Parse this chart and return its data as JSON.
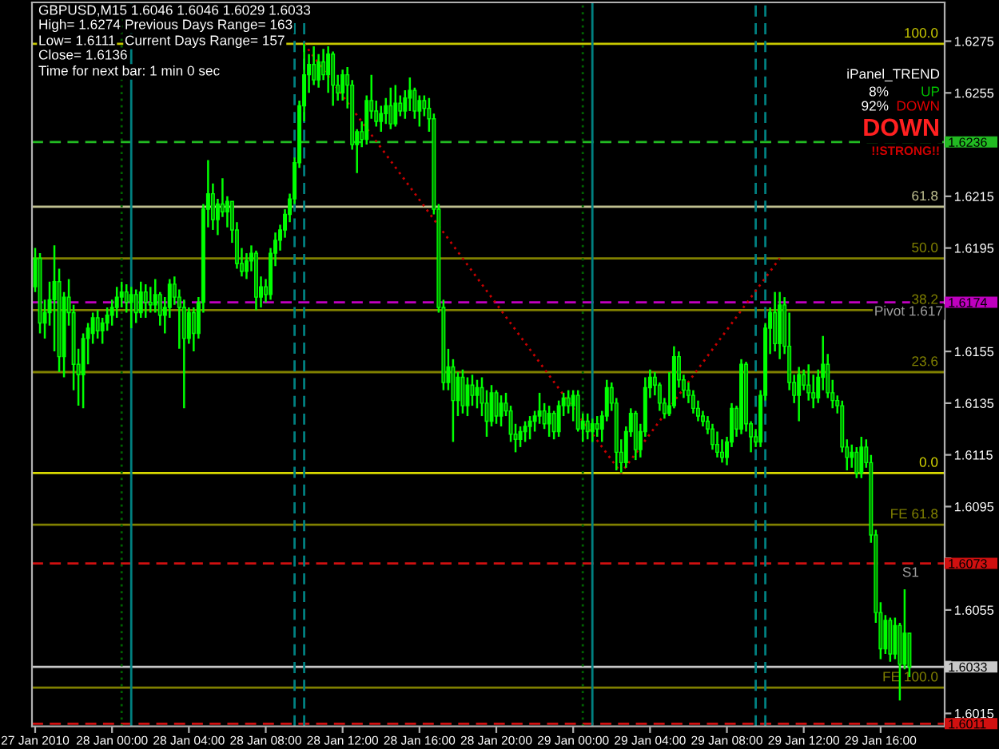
{
  "chart_data": {
    "type": "candlestick",
    "title": "GBPUSD,M15 1.6046 1.6046 1.6029 1.6033",
    "color": "#00ff00",
    "x": [
      "2010-01-27T20:00",
      "2010-01-27T20:15",
      "2010-01-27T20:30",
      "2010-01-27T20:45",
      "2010-01-27T21:00",
      "2010-01-27T21:15",
      "2010-01-27T21:30",
      "2010-01-27T21:45",
      "2010-01-27T22:00",
      "2010-01-27T22:15",
      "2010-01-27T22:30",
      "2010-01-27T22:45",
      "2010-01-27T23:00",
      "2010-01-27T23:15",
      "2010-01-27T23:30",
      "2010-01-27T23:45",
      "2010-01-28T00:00",
      "2010-01-28T00:15",
      "2010-01-28T00:30",
      "2010-01-28T00:45",
      "2010-01-28T01:00",
      "2010-01-28T01:15",
      "2010-01-28T01:30",
      "2010-01-28T01:45",
      "2010-01-28T02:00",
      "2010-01-28T02:15",
      "2010-01-28T02:30",
      "2010-01-28T02:45",
      "2010-01-28T03:00",
      "2010-01-28T03:15",
      "2010-01-28T03:30",
      "2010-01-28T03:45",
      "2010-01-28T04:00",
      "2010-01-28T04:15",
      "2010-01-28T04:30",
      "2010-01-28T04:45",
      "2010-01-28T05:00",
      "2010-01-28T05:15",
      "2010-01-28T05:30",
      "2010-01-28T05:45",
      "2010-01-28T06:00",
      "2010-01-28T06:15",
      "2010-01-28T06:30",
      "2010-01-28T06:45",
      "2010-01-28T07:00",
      "2010-01-28T07:15",
      "2010-01-28T07:30",
      "2010-01-28T07:45",
      "2010-01-28T08:00",
      "2010-01-28T08:15",
      "2010-01-28T08:30",
      "2010-01-28T08:45",
      "2010-01-28T09:00",
      "2010-01-28T09:15",
      "2010-01-28T09:30",
      "2010-01-28T09:45",
      "2010-01-28T10:00",
      "2010-01-28T10:15",
      "2010-01-28T10:30",
      "2010-01-28T10:45",
      "2010-01-28T11:00",
      "2010-01-28T11:15",
      "2010-01-28T11:30",
      "2010-01-28T11:45",
      "2010-01-28T12:00",
      "2010-01-28T12:15",
      "2010-01-28T12:30",
      "2010-01-28T12:45",
      "2010-01-28T13:00",
      "2010-01-28T13:15",
      "2010-01-28T13:30",
      "2010-01-28T13:45",
      "2010-01-28T14:00",
      "2010-01-28T14:15",
      "2010-01-28T14:30",
      "2010-01-28T14:45",
      "2010-01-28T15:00",
      "2010-01-28T15:15",
      "2010-01-28T15:30",
      "2010-01-28T15:45",
      "2010-01-28T16:00",
      "2010-01-28T16:15",
      "2010-01-28T16:30",
      "2010-01-28T16:45",
      "2010-01-28T17:00",
      "2010-01-28T17:15",
      "2010-01-28T17:30",
      "2010-01-28T17:45",
      "2010-01-28T18:00",
      "2010-01-28T18:15",
      "2010-01-28T18:30",
      "2010-01-28T18:45",
      "2010-01-28T19:00",
      "2010-01-28T19:15",
      "2010-01-28T19:30",
      "2010-01-28T19:45",
      "2010-01-28T20:00",
      "2010-01-28T20:15",
      "2010-01-28T20:30",
      "2010-01-28T20:45",
      "2010-01-28T21:00",
      "2010-01-28T21:15",
      "2010-01-28T21:30",
      "2010-01-28T21:45",
      "2010-01-28T22:00",
      "2010-01-28T22:15",
      "2010-01-28T22:30",
      "2010-01-28T22:45",
      "2010-01-28T23:00",
      "2010-01-28T23:15",
      "2010-01-28T23:30",
      "2010-01-28T23:45",
      "2010-01-29T00:00",
      "2010-01-29T00:15",
      "2010-01-29T00:30",
      "2010-01-29T00:45",
      "2010-01-29T01:00",
      "2010-01-29T01:15",
      "2010-01-29T01:30",
      "2010-01-29T01:45",
      "2010-01-29T02:00",
      "2010-01-29T02:15",
      "2010-01-29T02:30",
      "2010-01-29T02:45",
      "2010-01-29T03:00",
      "2010-01-29T03:15",
      "2010-01-29T03:30",
      "2010-01-29T03:45",
      "2010-01-29T04:00",
      "2010-01-29T04:15",
      "2010-01-29T04:30",
      "2010-01-29T04:45",
      "2010-01-29T05:00",
      "2010-01-29T05:15",
      "2010-01-29T05:30",
      "2010-01-29T05:45",
      "2010-01-29T06:00",
      "2010-01-29T06:15",
      "2010-01-29T06:30",
      "2010-01-29T06:45",
      "2010-01-29T07:00",
      "2010-01-29T07:15",
      "2010-01-29T07:30",
      "2010-01-29T07:45",
      "2010-01-29T08:00",
      "2010-01-29T08:15",
      "2010-01-29T08:30",
      "2010-01-29T08:45",
      "2010-01-29T09:00",
      "2010-01-29T09:15",
      "2010-01-29T09:30",
      "2010-01-29T09:45",
      "2010-01-29T10:00",
      "2010-01-29T10:15",
      "2010-01-29T10:30",
      "2010-01-29T10:45",
      "2010-01-29T11:00",
      "2010-01-29T11:15",
      "2010-01-29T11:30",
      "2010-01-29T11:45",
      "2010-01-29T12:00",
      "2010-01-29T12:15",
      "2010-01-29T12:30",
      "2010-01-29T12:45",
      "2010-01-29T13:00",
      "2010-01-29T13:15",
      "2010-01-29T13:30",
      "2010-01-29T13:45",
      "2010-01-29T14:00",
      "2010-01-29T14:15",
      "2010-01-29T14:30",
      "2010-01-29T14:45",
      "2010-01-29T15:00",
      "2010-01-29T15:15",
      "2010-01-29T15:30",
      "2010-01-29T15:45",
      "2010-01-29T16:00",
      "2010-01-29T16:15",
      "2010-01-29T16:30",
      "2010-01-29T16:45",
      "2010-01-29T17:00",
      "2010-01-29T17:15",
      "2010-01-29T17:30"
    ],
    "ohlc": [
      [
        1.618,
        1.6195,
        1.6178,
        1.6191
      ],
      [
        1.6191,
        1.6193,
        1.6162,
        1.6166
      ],
      [
        1.6166,
        1.6175,
        1.616,
        1.617
      ],
      [
        1.617,
        1.6182,
        1.6165,
        1.6175
      ],
      [
        1.6175,
        1.6196,
        1.6155,
        1.6182
      ],
      [
        1.6182,
        1.6187,
        1.6147,
        1.6153
      ],
      [
        1.6153,
        1.6178,
        1.6145,
        1.6176
      ],
      [
        1.6176,
        1.6183,
        1.6165,
        1.617
      ],
      [
        1.617,
        1.6173,
        1.614,
        1.615
      ],
      [
        1.615,
        1.6156,
        1.6134,
        1.6146
      ],
      [
        1.6146,
        1.6162,
        1.6133,
        1.616
      ],
      [
        1.616,
        1.6166,
        1.615,
        1.6164
      ],
      [
        1.6162,
        1.617,
        1.6158,
        1.6168
      ],
      [
        1.6168,
        1.6171,
        1.616,
        1.6163
      ],
      [
        1.6163,
        1.6168,
        1.6158,
        1.6166
      ],
      [
        1.6166,
        1.6172,
        1.6163,
        1.6169
      ],
      [
        1.6169,
        1.6175,
        1.6165,
        1.6172
      ],
      [
        1.6172,
        1.618,
        1.6168,
        1.6176
      ],
      [
        1.6176,
        1.6182,
        1.6172,
        1.6178
      ],
      [
        1.6178,
        1.6181,
        1.617,
        1.6174
      ],
      [
        1.6174,
        1.618,
        1.6164,
        1.6177
      ],
      [
        1.6177,
        1.6179,
        1.6166,
        1.617
      ],
      [
        1.617,
        1.6182,
        1.6168,
        1.6178
      ],
      [
        1.6178,
        1.6181,
        1.6168,
        1.6174
      ],
      [
        1.6174,
        1.618,
        1.617,
        1.6173
      ],
      [
        1.6173,
        1.6183,
        1.617,
        1.6177
      ],
      [
        1.6177,
        1.6178,
        1.6165,
        1.6169
      ],
      [
        1.6169,
        1.6176,
        1.6162,
        1.6172
      ],
      [
        1.6172,
        1.6183,
        1.6168,
        1.6181
      ],
      [
        1.6181,
        1.6184,
        1.6173,
        1.6176
      ],
      [
        1.6176,
        1.6179,
        1.6156,
        1.6172
      ],
      [
        1.6172,
        1.6175,
        1.6133,
        1.616
      ],
      [
        1.616,
        1.6172,
        1.6158,
        1.617
      ],
      [
        1.617,
        1.6172,
        1.6155,
        1.6162
      ],
      [
        1.6162,
        1.6176,
        1.616,
        1.6174
      ],
      [
        1.6174,
        1.6212,
        1.617,
        1.621
      ],
      [
        1.621,
        1.6229,
        1.6203,
        1.6216
      ],
      [
        1.6216,
        1.622,
        1.6202,
        1.6206
      ],
      [
        1.6206,
        1.6214,
        1.62,
        1.6212
      ],
      [
        1.6212,
        1.6222,
        1.6207,
        1.6209
      ],
      [
        1.6209,
        1.6215,
        1.6203,
        1.6213
      ],
      [
        1.6213,
        1.6213,
        1.6197,
        1.6202
      ],
      [
        1.6202,
        1.6205,
        1.6187,
        1.6189
      ],
      [
        1.6189,
        1.6195,
        1.6184,
        1.6186
      ],
      [
        1.6186,
        1.6193,
        1.6183,
        1.619
      ],
      [
        1.619,
        1.6196,
        1.6186,
        1.6193
      ],
      [
        1.6193,
        1.6194,
        1.6171,
        1.6176
      ],
      [
        1.6176,
        1.6184,
        1.6172,
        1.618
      ],
      [
        1.618,
        1.6183,
        1.6174,
        1.6177
      ],
      [
        1.6177,
        1.6195,
        1.6175,
        1.6193
      ],
      [
        1.6193,
        1.6201,
        1.6188,
        1.6198
      ],
      [
        1.6198,
        1.6204,
        1.6194,
        1.6202
      ],
      [
        1.6202,
        1.621,
        1.6199,
        1.6208
      ],
      [
        1.6208,
        1.6216,
        1.6205,
        1.6214
      ],
      [
        1.6214,
        1.623,
        1.6212,
        1.6228
      ],
      [
        1.6228,
        1.6252,
        1.6226,
        1.625
      ],
      [
        1.625,
        1.6274,
        1.6244,
        1.6262
      ],
      [
        1.6262,
        1.627,
        1.6255,
        1.6266
      ],
      [
        1.6266,
        1.6273,
        1.6258,
        1.626
      ],
      [
        1.626,
        1.627,
        1.6257,
        1.6267
      ],
      [
        1.6267,
        1.6272,
        1.626,
        1.6262
      ],
      [
        1.6262,
        1.6273,
        1.6255,
        1.627
      ],
      [
        1.627,
        1.6271,
        1.625,
        1.6258
      ],
      [
        1.6258,
        1.6262,
        1.6252,
        1.6255
      ],
      [
        1.6255,
        1.6264,
        1.6252,
        1.6262
      ],
      [
        1.6262,
        1.6265,
        1.6249,
        1.6258
      ],
      [
        1.6258,
        1.626,
        1.6233,
        1.6235
      ],
      [
        1.6235,
        1.6241,
        1.6224,
        1.624
      ],
      [
        1.624,
        1.6244,
        1.6234,
        1.6237
      ],
      [
        1.6237,
        1.6254,
        1.6235,
        1.6252
      ],
      [
        1.6252,
        1.6262,
        1.6245,
        1.6248
      ],
      [
        1.6248,
        1.6252,
        1.6242,
        1.6244
      ],
      [
        1.6244,
        1.625,
        1.624,
        1.6247
      ],
      [
        1.6247,
        1.6253,
        1.6243,
        1.625
      ],
      [
        1.625,
        1.6257,
        1.6241,
        1.6243
      ],
      [
        1.6243,
        1.6258,
        1.6242,
        1.6251
      ],
      [
        1.6251,
        1.6254,
        1.6246,
        1.6248
      ],
      [
        1.6248,
        1.6256,
        1.6245,
        1.6253
      ],
      [
        1.6253,
        1.6261,
        1.6248,
        1.6256
      ],
      [
        1.6256,
        1.6257,
        1.6245,
        1.6248
      ],
      [
        1.6248,
        1.6254,
        1.6242,
        1.6252
      ],
      [
        1.6252,
        1.6254,
        1.6246,
        1.6249
      ],
      [
        1.6249,
        1.6253,
        1.624,
        1.6245
      ],
      [
        1.6245,
        1.6247,
        1.6208,
        1.621
      ],
      [
        1.621,
        1.6212,
        1.617,
        1.6172
      ],
      [
        1.6172,
        1.6175,
        1.614,
        1.6143
      ],
      [
        1.6143,
        1.6156,
        1.614,
        1.6149
      ],
      [
        1.6149,
        1.6152,
        1.612,
        1.6136
      ],
      [
        1.6136,
        1.6147,
        1.613,
        1.6145
      ],
      [
        1.6145,
        1.6148,
        1.6131,
        1.6134
      ],
      [
        1.6134,
        1.6145,
        1.613,
        1.6142
      ],
      [
        1.6142,
        1.6146,
        1.6134,
        1.6138
      ],
      [
        1.6138,
        1.6144,
        1.6133,
        1.6141
      ],
      [
        1.6141,
        1.6145,
        1.613,
        1.6135
      ],
      [
        1.6135,
        1.614,
        1.6122,
        1.6128
      ],
      [
        1.6128,
        1.6142,
        1.6126,
        1.6139
      ],
      [
        1.6139,
        1.614,
        1.6127,
        1.613
      ],
      [
        1.613,
        1.6138,
        1.6126,
        1.6135
      ],
      [
        1.6135,
        1.6139,
        1.613,
        1.6132
      ],
      [
        1.6132,
        1.6134,
        1.612,
        1.6123
      ],
      [
        1.6123,
        1.6127,
        1.6116,
        1.6121
      ],
      [
        1.6121,
        1.6126,
        1.6118,
        1.6124
      ],
      [
        1.6124,
        1.6128,
        1.612,
        1.6126
      ],
      [
        1.6126,
        1.613,
        1.6121,
        1.6128
      ],
      [
        1.6128,
        1.6132,
        1.6124,
        1.613
      ],
      [
        1.613,
        1.6139,
        1.6127,
        1.6132
      ],
      [
        1.6132,
        1.6135,
        1.6125,
        1.6127
      ],
      [
        1.6127,
        1.6134,
        1.6122,
        1.6131
      ],
      [
        1.6131,
        1.6132,
        1.6121,
        1.6124
      ],
      [
        1.6124,
        1.6136,
        1.6122,
        1.6134
      ],
      [
        1.6134,
        1.6139,
        1.613,
        1.6137
      ],
      [
        1.6137,
        1.614,
        1.6131,
        1.6134
      ],
      [
        1.6134,
        1.614,
        1.6128,
        1.6138
      ],
      [
        1.6138,
        1.614,
        1.6124,
        1.6125
      ],
      [
        1.6125,
        1.6131,
        1.612,
        1.6128
      ],
      [
        1.6128,
        1.6131,
        1.6121,
        1.6124
      ],
      [
        1.6124,
        1.6129,
        1.612,
        1.6127
      ],
      [
        1.6127,
        1.613,
        1.6122,
        1.6125
      ],
      [
        1.6125,
        1.6132,
        1.612,
        1.613
      ],
      [
        1.613,
        1.6144,
        1.6128,
        1.6141
      ],
      [
        1.6141,
        1.6143,
        1.6132,
        1.6135
      ],
      [
        1.6135,
        1.6137,
        1.6109,
        1.6116
      ],
      [
        1.6116,
        1.6121,
        1.6108,
        1.6112
      ],
      [
        1.6112,
        1.6126,
        1.611,
        1.6124
      ],
      [
        1.6124,
        1.6133,
        1.6122,
        1.6131
      ],
      [
        1.6131,
        1.6132,
        1.6113,
        1.6117
      ],
      [
        1.6117,
        1.6127,
        1.6114,
        1.6124
      ],
      [
        1.6124,
        1.6145,
        1.6122,
        1.6141
      ],
      [
        1.6141,
        1.6148,
        1.6137,
        1.6145
      ],
      [
        1.6145,
        1.6147,
        1.6138,
        1.6142
      ],
      [
        1.6142,
        1.6143,
        1.6132,
        1.6135
      ],
      [
        1.6135,
        1.6137,
        1.6129,
        1.6131
      ],
      [
        1.6131,
        1.6147,
        1.613,
        1.6134
      ],
      [
        1.6134,
        1.6157,
        1.6133,
        1.6153
      ],
      [
        1.6153,
        1.6155,
        1.6141,
        1.6144
      ],
      [
        1.6144,
        1.6146,
        1.6137,
        1.614
      ],
      [
        1.614,
        1.6143,
        1.6135,
        1.6138
      ],
      [
        1.6138,
        1.614,
        1.6131,
        1.6133
      ],
      [
        1.6133,
        1.6136,
        1.6128,
        1.613
      ],
      [
        1.613,
        1.6132,
        1.6126,
        1.6128
      ],
      [
        1.6128,
        1.613,
        1.6123,
        1.6125
      ],
      [
        1.6125,
        1.6127,
        1.6117,
        1.6119
      ],
      [
        1.6119,
        1.6124,
        1.6114,
        1.6116
      ],
      [
        1.6116,
        1.6121,
        1.6112,
        1.6114
      ],
      [
        1.6114,
        1.6122,
        1.6111,
        1.612
      ],
      [
        1.612,
        1.6135,
        1.6118,
        1.6133
      ],
      [
        1.6133,
        1.6134,
        1.6122,
        1.6125
      ],
      [
        1.6125,
        1.6152,
        1.6123,
        1.615
      ],
      [
        1.615,
        1.6151,
        1.6124,
        1.6127
      ],
      [
        1.6127,
        1.6128,
        1.6116,
        1.6122
      ],
      [
        1.6122,
        1.6125,
        1.6118,
        1.612
      ],
      [
        1.612,
        1.614,
        1.6118,
        1.6138
      ],
      [
        1.6138,
        1.6166,
        1.6136,
        1.6164
      ],
      [
        1.6164,
        1.6172,
        1.6154,
        1.617
      ],
      [
        1.617,
        1.6178,
        1.6155,
        1.6158
      ],
      [
        1.6158,
        1.6178,
        1.6152,
        1.6173
      ],
      [
        1.6173,
        1.6176,
        1.6154,
        1.6157
      ],
      [
        1.6157,
        1.617,
        1.614,
        1.6143
      ],
      [
        1.6143,
        1.6146,
        1.6135,
        1.6138
      ],
      [
        1.6138,
        1.6149,
        1.6128,
        1.6146
      ],
      [
        1.6146,
        1.6148,
        1.614,
        1.6142
      ],
      [
        1.6142,
        1.615,
        1.6136,
        1.6139
      ],
      [
        1.6139,
        1.6146,
        1.6133,
        1.6137
      ],
      [
        1.6137,
        1.6148,
        1.6135,
        1.6145
      ],
      [
        1.6145,
        1.6161,
        1.614,
        1.615
      ],
      [
        1.615,
        1.6154,
        1.6137,
        1.6139
      ],
      [
        1.6139,
        1.6144,
        1.6133,
        1.6136
      ],
      [
        1.6136,
        1.6138,
        1.6131,
        1.6134
      ],
      [
        1.6134,
        1.6136,
        1.6116,
        1.6118
      ],
      [
        1.6118,
        1.6121,
        1.6109,
        1.6114
      ],
      [
        1.6114,
        1.6119,
        1.611,
        1.6116
      ],
      [
        1.6116,
        1.6118,
        1.6106,
        1.6108
      ],
      [
        1.6108,
        1.6122,
        1.6106,
        1.6118
      ],
      [
        1.6118,
        1.6121,
        1.611,
        1.6112
      ],
      [
        1.6112,
        1.6115,
        1.6081,
        1.6084
      ],
      [
        1.6084,
        1.6086,
        1.605,
        1.6054
      ],
      [
        1.6054,
        1.6058,
        1.6036,
        1.604
      ],
      [
        1.604,
        1.6053,
        1.6038,
        1.6051
      ],
      [
        1.6051,
        1.6052,
        1.6035,
        1.6038
      ],
      [
        1.6038,
        1.6052,
        1.6036,
        1.6049
      ],
      [
        1.6049,
        1.605,
        1.602,
        1.6034
      ],
      [
        1.6034,
        1.6063,
        1.6032,
        1.6046
      ],
      [
        1.6046,
        1.6046,
        1.6029,
        1.6033
      ]
    ],
    "series": [
      {
        "type": "line",
        "x": [
          "2010-01-28T10:00",
          "2010-01-29T02:30",
          "2010-01-29T10:45"
        ],
        "values": [
          1.6274,
          1.6108,
          1.6191
        ],
        "color": "#c80000",
        "line_style": "dotted"
      }
    ],
    "xlim": [
      "2010-01-27T19:50",
      "2010-01-29T19:20"
    ],
    "xticks": [
      {
        "value": "2010-01-27T20:00",
        "label": "27 Jan 2010"
      },
      {
        "value": "2010-01-28T00:00",
        "label": "28 Jan 00:00"
      },
      {
        "value": "2010-01-28T04:00",
        "label": "28 Jan 04:00"
      },
      {
        "value": "2010-01-28T08:00",
        "label": "28 Jan 08:00"
      },
      {
        "value": "2010-01-28T12:00",
        "label": "28 Jan 12:00"
      },
      {
        "value": "2010-01-28T16:00",
        "label": "28 Jan 16:00"
      },
      {
        "value": "2010-01-28T20:00",
        "label": "28 Jan 20:00"
      },
      {
        "value": "2010-01-29T00:00",
        "label": "29 Jan 00:00"
      },
      {
        "value": "2010-01-29T04:00",
        "label": "29 Jan 04:00"
      },
      {
        "value": "2010-01-29T08:00",
        "label": "29 Jan 08:00"
      },
      {
        "value": "2010-01-29T12:00",
        "label": "29 Jan 12:00"
      },
      {
        "value": "2010-01-29T16:00",
        "label": "29 Jan 16:00"
      }
    ],
    "ylim": [
      1.601,
      1.629
    ],
    "yticks": [
      1.6275,
      1.6255,
      {
        "value": 1.6235,
        "label": null
      },
      1.6215,
      1.6195,
      {
        "value": 1.6175,
        "label": null
      },
      1.6155,
      1.6135,
      1.6115,
      1.6095,
      {
        "value": 1.6075,
        "label": null
      },
      1.6055,
      {
        "value": 1.6035,
        "label": null
      },
      1.6015
    ],
    "ref_lines": [
      {
        "axis": "y",
        "value": 1.6274,
        "color": "#c8c800"
      },
      {
        "axis": "y",
        "value": 1.6211,
        "color": "#c0c090"
      },
      {
        "axis": "y",
        "value": 1.6191,
        "color": "#808000"
      },
      {
        "axis": "y",
        "value": 1.6171,
        "color": "#808000"
      },
      {
        "axis": "y",
        "value": 1.6147,
        "color": "#808000"
      },
      {
        "axis": "y",
        "value": 1.6108,
        "color": "#d8d800"
      },
      {
        "axis": "y",
        "value": 1.6088,
        "color": "#808000"
      },
      {
        "axis": "y",
        "value": 1.6025,
        "color": "#808000"
      },
      {
        "axis": "y",
        "value": 1.6236,
        "label": "1.6236",
        "color": "#22bb22",
        "line_style": "dashed"
      },
      {
        "axis": "y",
        "value": 1.6174,
        "label": "1.6174",
        "color": "#c000c0",
        "line_style": "dashed"
      },
      {
        "axis": "y",
        "value": 1.6073,
        "label": "1.6073",
        "color": "#d01010",
        "line_style": "dashed"
      },
      {
        "axis": "y",
        "value": 1.6033,
        "label": "1.6033",
        "color": "#c8c8c8"
      },
      {
        "axis": "y",
        "value": 1.6011,
        "label": "1.6011",
        "color": "#d01010",
        "line_style": "dashed"
      },
      {
        "axis": "x",
        "value": "2010-01-28T00:30",
        "color": "#006400",
        "line_style": "dotted"
      },
      {
        "axis": "x",
        "value": "2010-01-28T01:00",
        "color": "#008080"
      },
      {
        "axis": "x",
        "value": "2010-01-28T09:30",
        "color": "#008080",
        "line_style": "dashed"
      },
      {
        "axis": "x",
        "value": "2010-01-28T10:00",
        "color": "#008080",
        "line_style": "dashed"
      },
      {
        "axis": "x",
        "value": "2010-01-29T00:30",
        "color": "#006400",
        "line_style": "dotted"
      },
      {
        "axis": "x",
        "value": "2010-01-29T01:00",
        "color": "#008080"
      },
      {
        "axis": "x",
        "value": "2010-01-29T09:30",
        "color": "#008080",
        "line_style": "dashed"
      },
      {
        "axis": "x",
        "value": "2010-01-29T10:00",
        "color": "#008080",
        "line_style": "dashed"
      }
    ],
    "annotations": [
      "High= 1.6274",
      "Previous Days Range= 163",
      "Low= 1.6111",
      "Current Days Range= 157",
      "Close= 1.6136",
      "Time for next bar: 1 min 0 sec",
      "iPanel_TREND",
      "8%",
      "UP",
      "92%",
      "DOWN",
      "DOWN",
      "!!STRONG!!",
      {
        "text": "100.0",
        "x": "2010-01-29T19:00",
        "y": 1.6274
      },
      {
        "text": "61.8",
        "x": "2010-01-29T19:00",
        "y": 1.6211
      },
      {
        "text": "50.0",
        "x": "2010-01-29T19:00",
        "y": 1.6191
      },
      {
        "text": "38.2",
        "x": "2010-01-29T19:00",
        "y": 1.6171
      },
      {
        "text": "23.6",
        "x": "2010-01-29T19:00",
        "y": 1.6147
      },
      {
        "text": "0.0",
        "x": "2010-01-29T19:00",
        "y": 1.6108
      },
      {
        "text": "FE 61.8",
        "x": "2010-01-29T19:00",
        "y": 1.6088
      },
      {
        "text": "FE 100.0",
        "x": "2010-01-29T19:00",
        "y": 1.6025
      },
      {
        "text": "Pivot 1.617",
        "x": "2010-01-29T19:15",
        "y": 1.6174
      },
      {
        "text": "S1",
        "x": "2010-01-29T18:00",
        "y": 1.6073
      }
    ]
  }
}
